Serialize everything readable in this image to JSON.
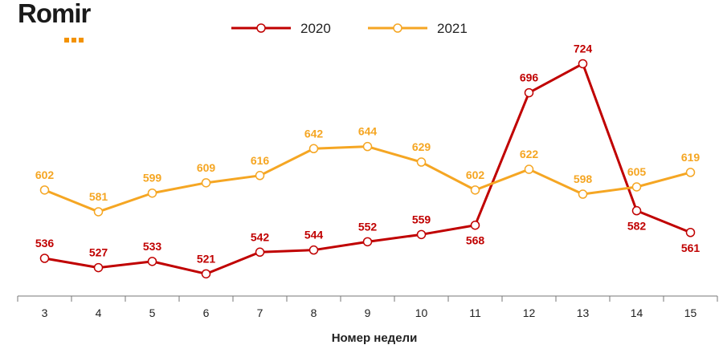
{
  "logo": {
    "text": "Romir"
  },
  "colors": {
    "s2020": "#c00000",
    "s2021": "#f5a623",
    "axis": "#777777"
  },
  "chart_data": {
    "type": "line",
    "xlabel": "Номер недели",
    "ylabel": "",
    "ylim": [
      480,
      760
    ],
    "grid": false,
    "legend_position": "top-center",
    "categories": [
      "3",
      "4",
      "5",
      "6",
      "7",
      "8",
      "9",
      "10",
      "11",
      "12",
      "13",
      "14",
      "15"
    ],
    "series": [
      {
        "name": "2020",
        "values": [
          536,
          527,
          533,
          521,
          542,
          544,
          552,
          559,
          568,
          696,
          724,
          582,
          561
        ]
      },
      {
        "name": "2021",
        "values": [
          602,
          581,
          599,
          609,
          616,
          642,
          644,
          629,
          602,
          622,
          598,
          605,
          619
        ]
      }
    ]
  }
}
